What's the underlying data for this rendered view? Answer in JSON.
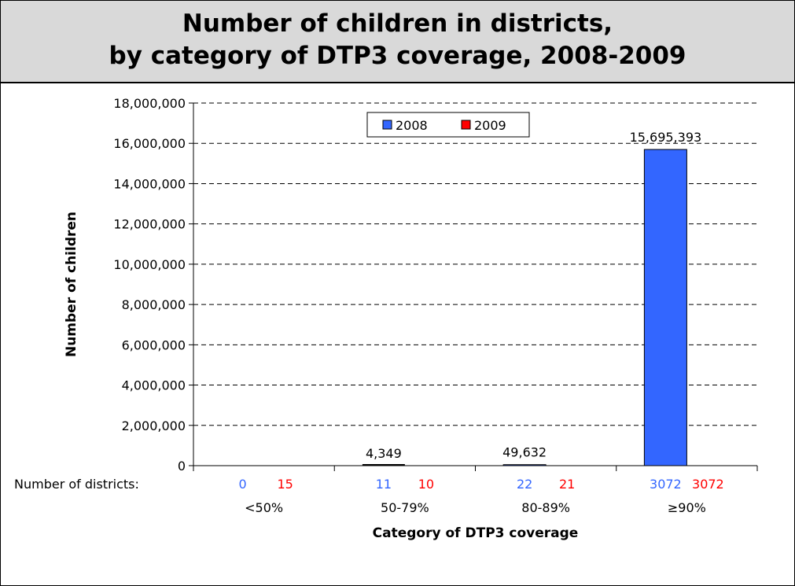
{
  "chart_data": {
    "type": "bar",
    "title_lines": [
      "Number of children in districts,",
      "by category of DTP3 coverage, 2008-2009"
    ],
    "xlabel": "Category of DTP3 coverage",
    "ylabel": "Number of children",
    "categories": [
      "<50%",
      "50-79%",
      "80-89%",
      "≥90%"
    ],
    "series": [
      {
        "name": "2008",
        "color": "#3366ff",
        "values": [
          0,
          4349,
          49632,
          15695393
        ]
      },
      {
        "name": "2009",
        "color": "#ff0000",
        "values": [
          0,
          0,
          0,
          0
        ]
      }
    ],
    "value_labels": [
      "",
      "4,349",
      "49,632",
      "15,695,393"
    ],
    "ylim": [
      0,
      18000000
    ],
    "yticks": [
      0,
      2000000,
      4000000,
      6000000,
      8000000,
      10000000,
      12000000,
      14000000,
      16000000,
      18000000
    ],
    "ytick_labels": [
      "0",
      "2,000,000",
      "4,000,000",
      "6,000,000",
      "8,000,000",
      "10,000,000",
      "12,000,000",
      "14,000,000",
      "16,000,000",
      "18,000,000"
    ],
    "grid": "horizontal dashed",
    "legend_placement": "top-center",
    "districts_label": "Number of districts:",
    "districts": [
      {
        "y2008": "0",
        "y2009": "15"
      },
      {
        "y2008": "11",
        "y2009": "10"
      },
      {
        "y2008": "22",
        "y2009": "21"
      },
      {
        "y2008": "3072",
        "y2009": "3072"
      }
    ]
  }
}
